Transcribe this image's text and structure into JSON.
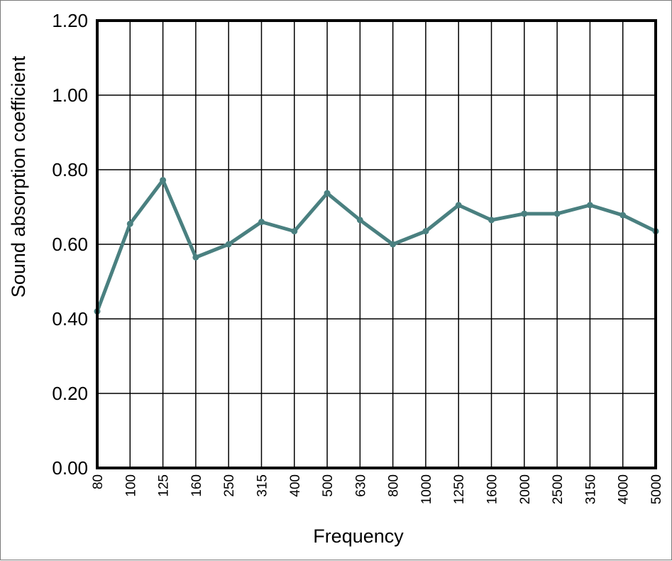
{
  "chart_data": {
    "type": "line",
    "xlabel": "Frequency",
    "ylabel": "Sound absorption coefficient",
    "categories": [
      "80",
      "100",
      "125",
      "160",
      "250",
      "315",
      "400",
      "500",
      "630",
      "800",
      "1000",
      "1250",
      "1600",
      "2000",
      "2500",
      "3150",
      "4000",
      "5000"
    ],
    "series": [
      {
        "values": [
          0.42,
          0.655,
          0.772,
          0.565,
          0.6,
          0.66,
          0.635,
          0.737,
          0.665,
          0.6,
          0.635,
          0.705,
          0.665,
          0.682,
          0.682,
          0.705,
          0.678,
          0.635
        ]
      }
    ],
    "ylim": [
      0,
      1.2
    ],
    "yticks": [
      "0.00",
      "0.20",
      "0.40",
      "0.60",
      "0.80",
      "1.00",
      "1.20"
    ],
    "grid": true,
    "line_color": "#4a8080"
  }
}
